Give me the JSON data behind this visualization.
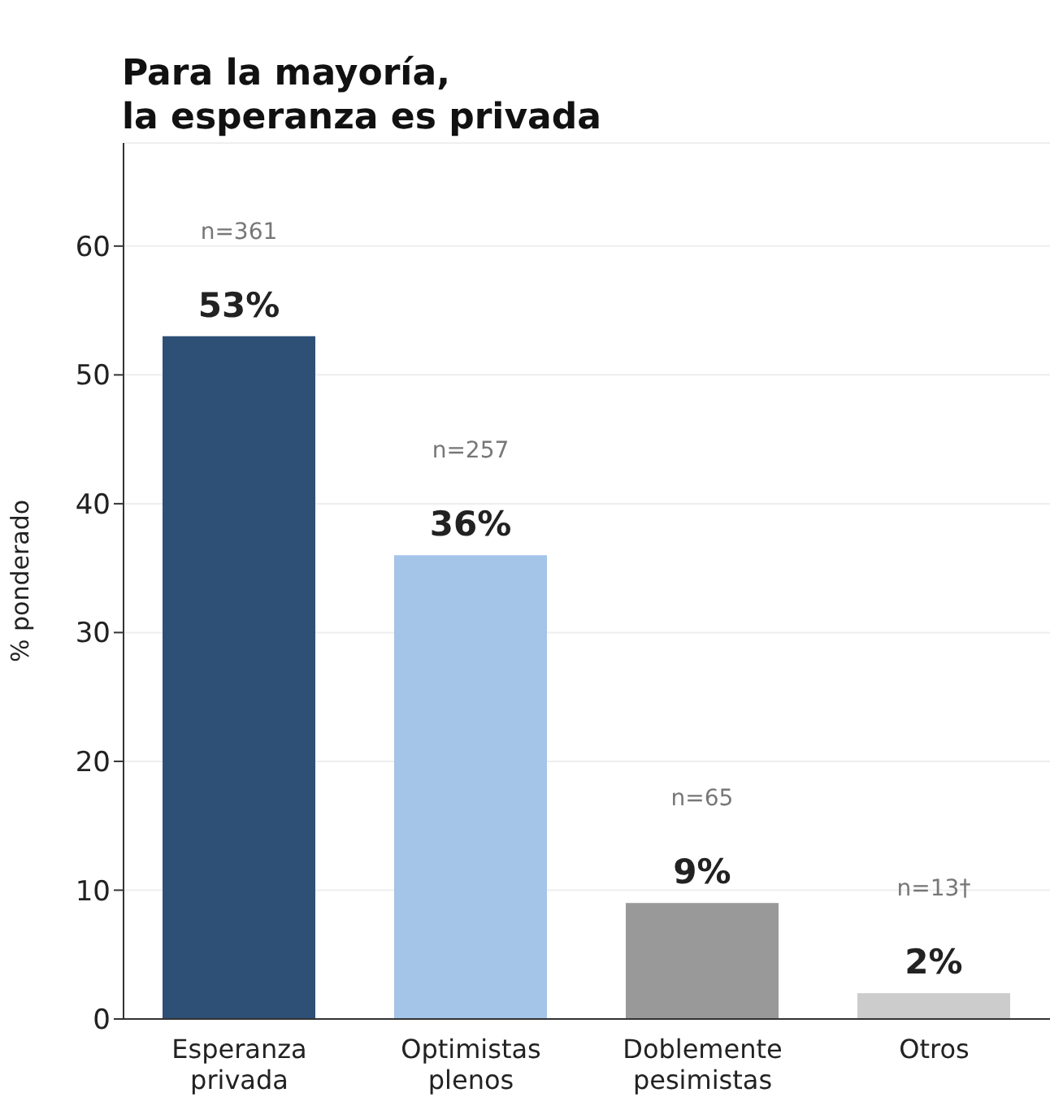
{
  "chart_data": {
    "type": "bar",
    "title": "Para la mayoría,\nla esperanza es privada",
    "ylabel": "% ponderado",
    "categories": [
      "Esperanza privada",
      "Optimistas plenos",
      "Doblemente pesimistas",
      "Otros"
    ],
    "values": [
      53,
      36,
      9,
      2
    ],
    "colors": [
      "#2e5077",
      "#a4c4e8",
      "#999999",
      "#cccccc"
    ],
    "value_labels": [
      "53%",
      "36%",
      "9%",
      "2%"
    ],
    "annotations": [
      "n=361",
      "n=257",
      "n=65",
      "n=13†"
    ],
    "ylim": [
      0,
      68
    ],
    "yticks": [
      0,
      10,
      20,
      30,
      40,
      50,
      60
    ],
    "grid": "y",
    "legend": false
  }
}
